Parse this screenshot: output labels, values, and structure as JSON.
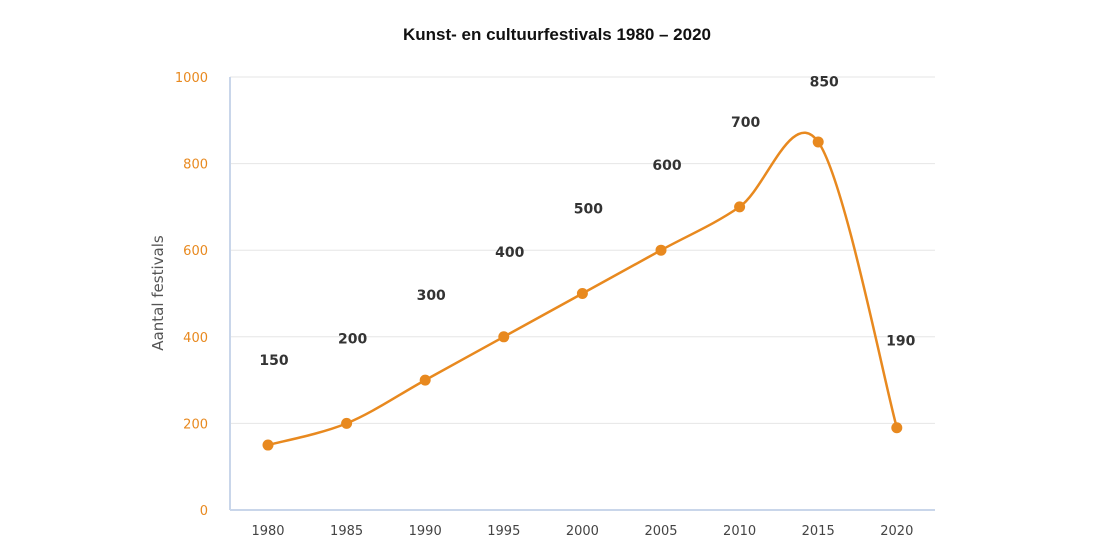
{
  "chart_data": {
    "type": "line",
    "title": "Kunst- en cultuurfestivals 1980 – 2020",
    "xlabel": "",
    "ylabel": "Aantal festivals",
    "categories": [
      "1980",
      "1985",
      "1990",
      "1995",
      "2000",
      "2005",
      "2010",
      "2015",
      "2020"
    ],
    "values": [
      150,
      200,
      300,
      400,
      500,
      600,
      700,
      850,
      190
    ],
    "ylim": [
      0,
      1000
    ],
    "yticks": [
      "0",
      "200",
      "400",
      "600",
      "800",
      "1000"
    ],
    "data_labels": [
      "150",
      "200",
      "300",
      "400",
      "500",
      "600",
      "700",
      "850",
      "190"
    ],
    "grid": "horizontal",
    "legend": "none",
    "colors": {
      "line": "#e8891f",
      "axis": "#c9d6ea",
      "grid": "#e6e6e6",
      "ytick": "#e8891f"
    }
  }
}
